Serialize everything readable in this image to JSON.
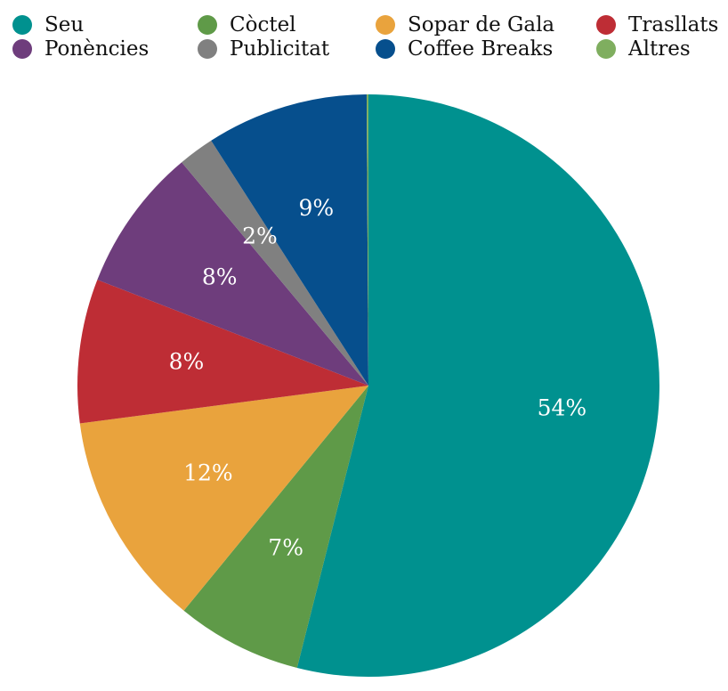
{
  "chart_data": {
    "type": "pie",
    "categories": [
      "Seu",
      "Còctel",
      "Sopar de Gala",
      "Trasllats",
      "Ponències",
      "Publicitat",
      "Coffee Breaks",
      "Altres"
    ],
    "values": [
      54,
      7,
      12,
      8,
      8,
      2,
      9,
      0.1
    ],
    "labels": [
      "54%",
      "7%",
      "12%",
      "8%",
      "8%",
      "2%",
      "9%",
      ""
    ],
    "colors": [
      "#00918f",
      "#5f9a48",
      "#e9a33d",
      "#be2d35",
      "#6e3d7c",
      "#808080",
      "#064f8d",
      "#7fae5f"
    ],
    "legend_position": "top",
    "start_angle": "12 o'clock",
    "direction": "clockwise"
  }
}
